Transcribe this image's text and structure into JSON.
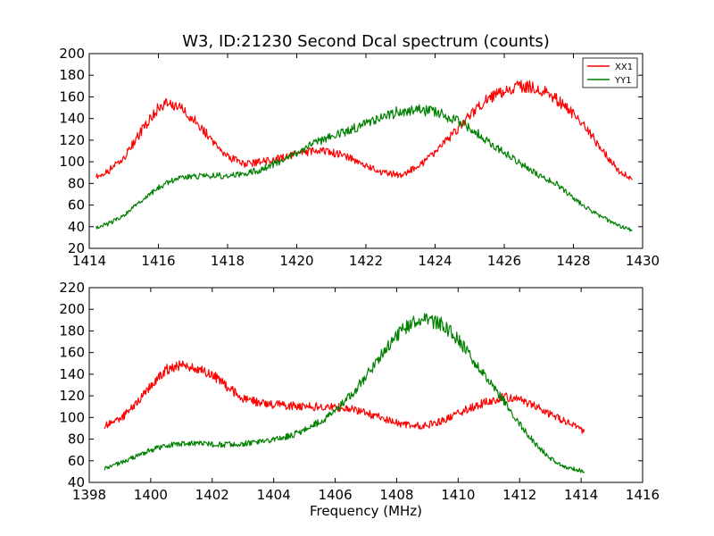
{
  "chart_data": [
    {
      "type": "line",
      "title": "W3, ID:21230 Second Dcal spectrum (counts)",
      "xlabel": "",
      "ylabel": "",
      "xlim": [
        1414,
        1430
      ],
      "ylim": [
        20,
        200
      ],
      "xticks": [
        "1414",
        "1416",
        "1418",
        "1420",
        "1422",
        "1424",
        "1426",
        "1428",
        "1430"
      ],
      "yticks": [
        "20",
        "40",
        "60",
        "80",
        "100",
        "120",
        "140",
        "160",
        "180",
        "200"
      ],
      "legend": "top-right",
      "grid": false,
      "series": [
        {
          "name": "XX1",
          "color": "#ff0000",
          "points": [
            [
              1414.2,
              86
            ],
            [
              1414.5,
              90
            ],
            [
              1415.0,
              104
            ],
            [
              1415.5,
              128
            ],
            [
              1416.0,
              150
            ],
            [
              1416.3,
              155
            ],
            [
              1416.7,
              148
            ],
            [
              1417.0,
              140
            ],
            [
              1417.5,
              122
            ],
            [
              1418.0,
              105
            ],
            [
              1418.5,
              98
            ],
            [
              1419.0,
              100
            ],
            [
              1419.5,
              103
            ],
            [
              1420.0,
              107
            ],
            [
              1420.5,
              110
            ],
            [
              1421.0,
              109
            ],
            [
              1421.5,
              104
            ],
            [
              1422.0,
              96
            ],
            [
              1422.5,
              90
            ],
            [
              1423.0,
              88
            ],
            [
              1423.5,
              95
            ],
            [
              1424.0,
              108
            ],
            [
              1424.5,
              125
            ],
            [
              1425.0,
              142
            ],
            [
              1425.5,
              158
            ],
            [
              1426.0,
              166
            ],
            [
              1426.5,
              170
            ],
            [
              1427.0,
              168
            ],
            [
              1427.5,
              158
            ],
            [
              1428.0,
              144
            ],
            [
              1428.5,
              125
            ],
            [
              1429.0,
              104
            ],
            [
              1429.3,
              92
            ],
            [
              1429.7,
              84
            ]
          ]
        },
        {
          "name": "YY1",
          "color": "#008000",
          "points": [
            [
              1414.2,
              39
            ],
            [
              1414.5,
              42
            ],
            [
              1415.0,
              50
            ],
            [
              1415.5,
              64
            ],
            [
              1416.0,
              76
            ],
            [
              1416.5,
              84
            ],
            [
              1417.0,
              87
            ],
            [
              1417.5,
              87
            ],
            [
              1418.0,
              87
            ],
            [
              1418.5,
              89
            ],
            [
              1419.0,
              93
            ],
            [
              1419.5,
              100
            ],
            [
              1420.0,
              108
            ],
            [
              1420.5,
              117
            ],
            [
              1421.0,
              124
            ],
            [
              1421.5,
              129
            ],
            [
              1422.0,
              136
            ],
            [
              1422.5,
              142
            ],
            [
              1423.0,
              147
            ],
            [
              1423.5,
              148
            ],
            [
              1424.0,
              146
            ],
            [
              1424.5,
              140
            ],
            [
              1425.0,
              131
            ],
            [
              1425.5,
              120
            ],
            [
              1426.0,
              108
            ],
            [
              1426.5,
              98
            ],
            [
              1427.0,
              88
            ],
            [
              1427.5,
              80
            ],
            [
              1428.0,
              66
            ],
            [
              1428.5,
              55
            ],
            [
              1429.0,
              46
            ],
            [
              1429.3,
              41
            ],
            [
              1429.7,
              37
            ]
          ]
        }
      ]
    },
    {
      "type": "line",
      "title": "",
      "xlabel": "Frequency (MHz)",
      "ylabel": "",
      "xlim": [
        1398,
        1416
      ],
      "ylim": [
        40,
        220
      ],
      "xticks": [
        "1398",
        "1400",
        "1402",
        "1404",
        "1406",
        "1408",
        "1410",
        "1412",
        "1414",
        "1416"
      ],
      "yticks": [
        "40",
        "60",
        "80",
        "100",
        "120",
        "140",
        "160",
        "180",
        "200",
        "220"
      ],
      "legend": "",
      "grid": false,
      "series": [
        {
          "name": "",
          "color": "#ff0000",
          "points": [
            [
              1398.5,
              92
            ],
            [
              1399.0,
              98
            ],
            [
              1399.5,
              112
            ],
            [
              1400.0,
              130
            ],
            [
              1400.5,
              144
            ],
            [
              1401.0,
              148
            ],
            [
              1401.5,
              146
            ],
            [
              1402.0,
              140
            ],
            [
              1402.5,
              128
            ],
            [
              1403.0,
              118
            ],
            [
              1403.5,
              114
            ],
            [
              1404.0,
              112
            ],
            [
              1404.5,
              111
            ],
            [
              1405.0,
              110
            ],
            [
              1405.5,
              110
            ],
            [
              1406.0,
              110
            ],
            [
              1406.5,
              108
            ],
            [
              1407.0,
              104
            ],
            [
              1407.5,
              100
            ],
            [
              1408.0,
              95
            ],
            [
              1408.5,
              92
            ],
            [
              1409.0,
              93
            ],
            [
              1409.5,
              97
            ],
            [
              1410.0,
              104
            ],
            [
              1410.5,
              110
            ],
            [
              1411.0,
              115
            ],
            [
              1411.5,
              119
            ],
            [
              1412.0,
              116
            ],
            [
              1412.5,
              111
            ],
            [
              1413.0,
              103
            ],
            [
              1413.5,
              96
            ],
            [
              1414.1,
              87
            ]
          ]
        },
        {
          "name": "",
          "color": "#008000",
          "points": [
            [
              1398.5,
              53
            ],
            [
              1399.0,
              58
            ],
            [
              1399.5,
              64
            ],
            [
              1400.0,
              70
            ],
            [
              1400.5,
              74
            ],
            [
              1401.0,
              76
            ],
            [
              1401.5,
              76
            ],
            [
              1402.0,
              75
            ],
            [
              1402.5,
              75
            ],
            [
              1403.0,
              76
            ],
            [
              1403.5,
              77
            ],
            [
              1404.0,
              79
            ],
            [
              1404.5,
              83
            ],
            [
              1405.0,
              88
            ],
            [
              1405.5,
              96
            ],
            [
              1406.0,
              106
            ],
            [
              1406.5,
              120
            ],
            [
              1407.0,
              138
            ],
            [
              1407.5,
              158
            ],
            [
              1408.0,
              176
            ],
            [
              1408.5,
              188
            ],
            [
              1409.0,
              190
            ],
            [
              1409.5,
              186
            ],
            [
              1410.0,
              172
            ],
            [
              1410.5,
              152
            ],
            [
              1411.0,
              134
            ],
            [
              1411.5,
              115
            ],
            [
              1412.0,
              94
            ],
            [
              1412.5,
              76
            ],
            [
              1413.0,
              62
            ],
            [
              1413.5,
              54
            ],
            [
              1414.1,
              50
            ]
          ]
        }
      ]
    }
  ]
}
